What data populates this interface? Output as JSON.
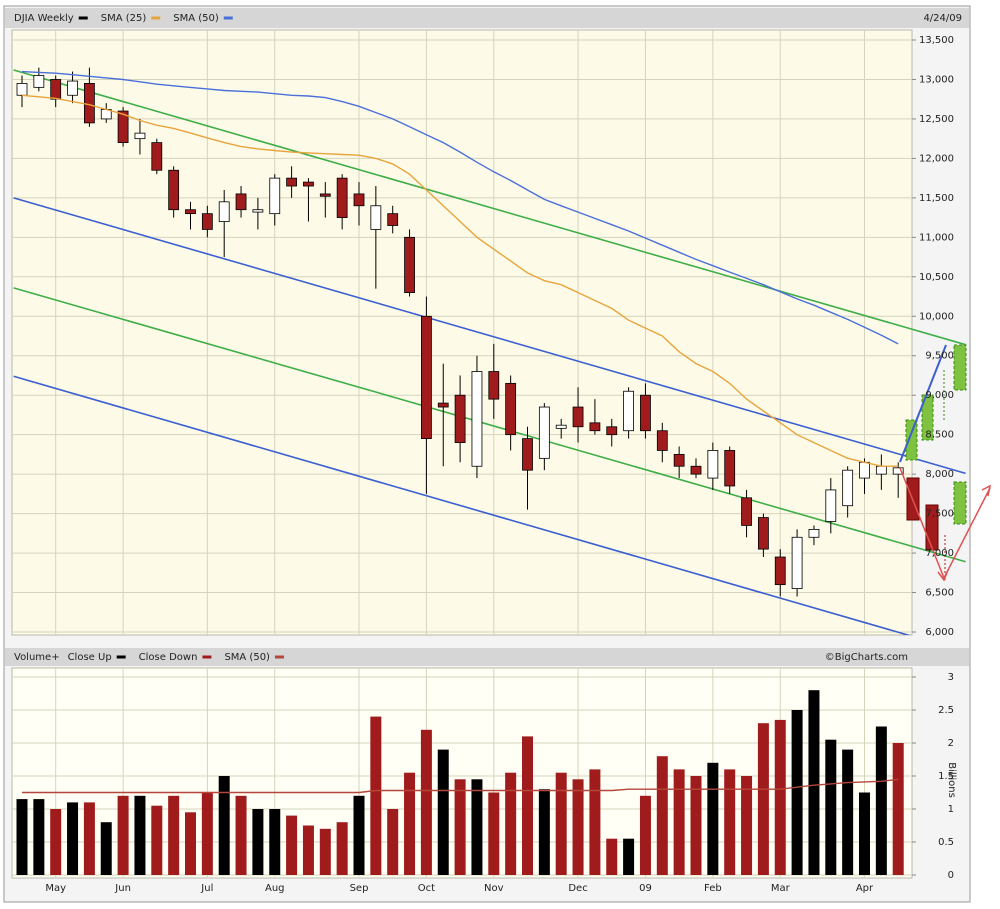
{
  "chart_data": [
    {
      "type": "candlestick",
      "date_label": "4/24/09",
      "series": [
        {
          "name": "DJIA Weekly",
          "color": "#000000",
          "up_color": "#ffffff",
          "down_color": "#a01c1c",
          "open": [
            12800,
            12900,
            13000,
            12800,
            12950,
            12500,
            12600,
            12250,
            12200,
            11850,
            11350,
            11300,
            11200,
            11550,
            11320,
            11300,
            11750,
            11700,
            11550,
            11750,
            11550,
            11100,
            11300,
            11000,
            10000,
            8900,
            9000,
            8100,
            9300,
            9150,
            8450,
            8200,
            8580,
            8850,
            8650,
            8600,
            8550,
            9000,
            8550,
            8250,
            8100,
            7950,
            8300,
            7700,
            7450,
            6950,
            6550,
            7200,
            7400,
            7600,
            7950,
            8000,
            8000
          ],
          "high": [
            13050,
            13150,
            13050,
            13100,
            13150,
            12700,
            12650,
            12500,
            12250,
            11900,
            11450,
            11400,
            11600,
            11650,
            11500,
            11800,
            11900,
            11750,
            11700,
            11800,
            11700,
            11650,
            11400,
            11100,
            10250,
            9400,
            9250,
            9500,
            9650,
            9250,
            8600,
            8900,
            8700,
            9100,
            8950,
            8700,
            9100,
            9150,
            8650,
            8350,
            8200,
            8400,
            8350,
            7800,
            7500,
            7050,
            7300,
            7350,
            7950,
            8100,
            8200,
            8250,
            8150
          ],
          "low": [
            12650,
            12850,
            12650,
            12700,
            12400,
            12450,
            12150,
            12050,
            11800,
            11250,
            11100,
            11000,
            10750,
            11250,
            11100,
            11150,
            11500,
            11200,
            11250,
            11100,
            11150,
            10350,
            11050,
            10250,
            7750,
            8100,
            8150,
            7950,
            8700,
            8300,
            7550,
            8050,
            8450,
            8400,
            8500,
            8350,
            8450,
            8450,
            8150,
            7950,
            7950,
            7800,
            7750,
            7200,
            6950,
            6450,
            6450,
            7100,
            7250,
            7450,
            7750,
            7800,
            7700
          ],
          "close": [
            12950,
            13050,
            12750,
            12980,
            12450,
            12620,
            12200,
            12320,
            11850,
            11350,
            11300,
            11100,
            11450,
            11350,
            11350,
            11750,
            11650,
            11650,
            11520,
            11250,
            11400,
            11400,
            11150,
            10300,
            8450,
            8850,
            8400,
            9300,
            8950,
            8500,
            8050,
            8850,
            8620,
            8600,
            8550,
            8500,
            9050,
            8550,
            8300,
            8100,
            8000,
            8300,
            7850,
            7350,
            7050,
            6600,
            7200,
            7300,
            7800,
            8050,
            8150,
            8100,
            8080
          ]
        },
        {
          "name": "SMA (25)",
          "type": "line",
          "color": "#e8a43c",
          "values": [
            12800,
            12780,
            12760,
            12720,
            12680,
            12620,
            12560,
            12480,
            12420,
            12380,
            12320,
            12260,
            12200,
            12150,
            12120,
            12100,
            12080,
            12070,
            12060,
            12050,
            12040,
            12000,
            11930,
            11800,
            11600,
            11400,
            11200,
            11000,
            10850,
            10700,
            10550,
            10450,
            10400,
            10300,
            10200,
            10100,
            9950,
            9850,
            9750,
            9550,
            9400,
            9300,
            9150,
            8950,
            8800,
            8650,
            8500,
            8400,
            8300,
            8200,
            8150,
            8100,
            8100
          ]
        },
        {
          "name": "SMA (50)",
          "type": "line",
          "color": "#4a6fd8",
          "values": [
            13100,
            13090,
            13080,
            13060,
            13040,
            13020,
            13000,
            12970,
            12940,
            12920,
            12900,
            12880,
            12860,
            12850,
            12840,
            12820,
            12800,
            12790,
            12770,
            12720,
            12660,
            12580,
            12500,
            12400,
            12300,
            12200,
            12080,
            11950,
            11830,
            11720,
            11600,
            11480,
            11400,
            11320,
            11240,
            11160,
            11080,
            10990,
            10900,
            10810,
            10720,
            10640,
            10560,
            10480,
            10400,
            10310,
            10220,
            10140,
            10050,
            9960,
            9860,
            9760,
            9650
          ]
        }
      ],
      "trend_lines": [
        {
          "color": "#3fae49",
          "x": [
            -0.5,
            56
          ],
          "values": [
            13120,
            9640
          ]
        },
        {
          "color": "#3b5fd0",
          "x": [
            -0.5,
            56
          ],
          "values": [
            11500,
            8010
          ]
        },
        {
          "color": "#3fae49",
          "x": [
            -0.5,
            56
          ],
          "values": [
            10360,
            6890
          ]
        },
        {
          "color": "#3b5fd0",
          "x": [
            -0.5,
            56
          ],
          "values": [
            9240,
            5750
          ]
        }
      ],
      "ylim": [
        6000,
        13500
      ],
      "yticks": [
        {
          "value": 6000,
          "label": "6,000"
        },
        {
          "value": 6500,
          "label": "6,500"
        },
        {
          "value": 7000,
          "label": "7,000"
        },
        {
          "value": 7500,
          "label": "7,500"
        },
        {
          "value": 8000,
          "label": "8,000"
        },
        {
          "value": 8500,
          "label": "8,500"
        },
        {
          "value": 9000,
          "label": "9,000"
        },
        {
          "value": 9500,
          "label": "9,500"
        },
        {
          "value": 10000,
          "label": "10,000"
        },
        {
          "value": 10500,
          "label": "10,500"
        },
        {
          "value": 11000,
          "label": "11,000"
        },
        {
          "value": 11500,
          "label": "11,500"
        },
        {
          "value": 12000,
          "label": "12,000"
        },
        {
          "value": 12500,
          "label": "12,500"
        },
        {
          "value": 13000,
          "label": "13,000"
        },
        {
          "value": 13500,
          "label": "13,500"
        }
      ],
      "grid": true
    },
    {
      "type": "bar",
      "title": "Volume+",
      "copyright": "©BigCharts.com",
      "ylabel": "Billions",
      "categories": [
        null,
        null,
        "May",
        null,
        null,
        null,
        "Jun",
        null,
        null,
        null,
        null,
        "Jul",
        null,
        null,
        null,
        "Aug",
        null,
        null,
        null,
        null,
        "Sep",
        null,
        null,
        null,
        "Oct",
        null,
        null,
        null,
        "Nov",
        null,
        null,
        null,
        null,
        "Dec",
        null,
        null,
        null,
        "09",
        null,
        null,
        null,
        "Feb",
        null,
        null,
        null,
        "Mar",
        null,
        null,
        null,
        null,
        "Apr",
        null,
        null
      ],
      "series": [
        {
          "name": "Close Up",
          "color": "#000000",
          "values": [
            1.15,
            1.15,
            null,
            1.1,
            null,
            0.8,
            null,
            1.2,
            null,
            null,
            null,
            null,
            1.5,
            null,
            1,
            1,
            null,
            null,
            null,
            null,
            1.2,
            null,
            null,
            null,
            null,
            1.9,
            null,
            1.45,
            null,
            null,
            null,
            1.3,
            null,
            null,
            null,
            null,
            0.55,
            null,
            null,
            null,
            null,
            1.7,
            null,
            null,
            null,
            null,
            2.5,
            2.8,
            2.05,
            1.9,
            1.25,
            2.25,
            null
          ]
        },
        {
          "name": "Close Down",
          "color": "#a01c1c",
          "values": [
            null,
            null,
            1,
            null,
            1.1,
            null,
            1.2,
            null,
            1.05,
            1.2,
            0.95,
            1.25,
            null,
            1.2,
            null,
            null,
            0.9,
            0.75,
            0.7,
            0.8,
            null,
            2.4,
            1,
            1.55,
            2.2,
            null,
            1.45,
            null,
            1.25,
            1.55,
            2.1,
            null,
            1.55,
            1.45,
            1.6,
            0.55,
            null,
            1.2,
            1.8,
            1.6,
            1.5,
            null,
            1.6,
            1.5,
            2.3,
            2.35,
            null,
            null,
            null,
            null,
            null,
            null,
            2
          ]
        },
        {
          "name": "SMA (50)",
          "type": "line",
          "color": "#b5463c",
          "values": [
            1.25,
            1.25,
            1.25,
            1.25,
            1.25,
            1.25,
            1.25,
            1.25,
            1.25,
            1.25,
            1.25,
            1.25,
            1.25,
            1.25,
            1.25,
            1.25,
            1.25,
            1.25,
            1.25,
            1.25,
            1.25,
            1.28,
            1.28,
            1.28,
            1.28,
            1.28,
            1.28,
            1.28,
            1.28,
            1.28,
            1.28,
            1.28,
            1.28,
            1.28,
            1.28,
            1.28,
            1.3,
            1.3,
            1.3,
            1.3,
            1.3,
            1.3,
            1.3,
            1.3,
            1.3,
            1.3,
            1.33,
            1.36,
            1.38,
            1.4,
            1.41,
            1.42,
            1.45
          ]
        }
      ],
      "ylim": [
        0,
        3
      ],
      "yticks": [
        0,
        0.5,
        1,
        1.5,
        2,
        2.5,
        3
      ],
      "grid": true
    }
  ]
}
